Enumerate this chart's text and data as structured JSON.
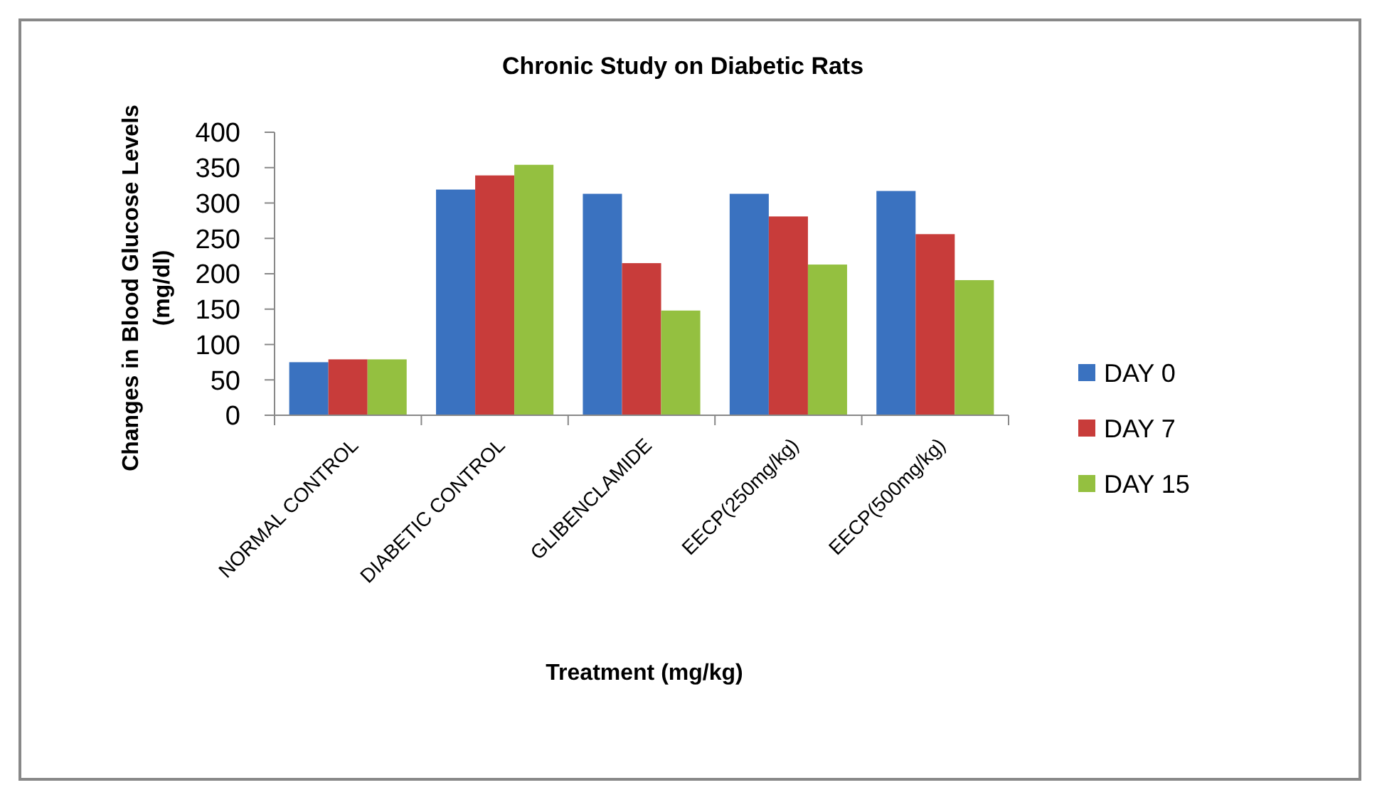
{
  "chart_data": {
    "type": "bar",
    "title": "Chronic Study on Diabetic Rats",
    "xlabel": "Treatment (mg/kg)",
    "ylabel": "Changes in Blood Glucose Levels (mg/dl)",
    "categories": [
      "NORMAL CONTROL",
      "DIABETIC CONTROL",
      "GLIBENCLAMIDE",
      "EECP(250mg/kg)",
      "EECP(500mg/kg)"
    ],
    "series": [
      {
        "name": "DAY 0",
        "color": "#3a72c0",
        "values": [
          75,
          319,
          313,
          313,
          317
        ]
      },
      {
        "name": "DAY 7",
        "color": "#c83c3a",
        "values": [
          79,
          339,
          215,
          281,
          256
        ]
      },
      {
        "name": "DAY 15",
        "color": "#94c040",
        "values": [
          79,
          354,
          148,
          213,
          191
        ]
      }
    ],
    "ylim": [
      0,
      400
    ],
    "yticks": [
      0,
      50,
      100,
      150,
      200,
      250,
      300,
      350,
      400
    ],
    "grid": false,
    "legend": "right"
  }
}
